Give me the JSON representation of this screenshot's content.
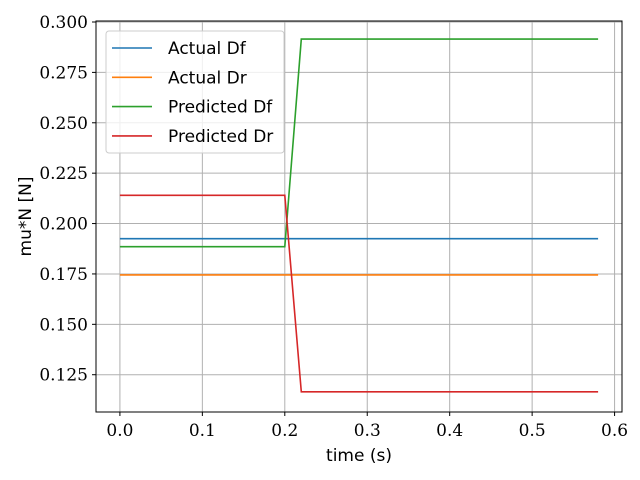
{
  "chart_data": {
    "type": "line",
    "xlabel": "time (s)",
    "ylabel": "mu*N [N]",
    "xlim": [
      -0.029,
      0.609
    ],
    "ylim": [
      0.1065,
      0.3005
    ],
    "xticks": [
      0.0,
      0.1,
      0.2,
      0.3,
      0.4,
      0.5,
      0.6
    ],
    "xtick_labels": [
      "0.0",
      "0.1",
      "0.2",
      "0.3",
      "0.4",
      "0.5",
      "0.6"
    ],
    "yticks": [
      0.125,
      0.15,
      0.175,
      0.2,
      0.225,
      0.25,
      0.275,
      0.3
    ],
    "ytick_labels": [
      "0.125",
      "0.150",
      "0.175",
      "0.200",
      "0.225",
      "0.250",
      "0.275",
      "0.300"
    ],
    "grid": true,
    "legend_position": "top-left",
    "series": [
      {
        "name": "Actual Df",
        "color": "#1f77b4",
        "x": [
          0.0,
          0.58
        ],
        "y": [
          0.1925,
          0.1925
        ]
      },
      {
        "name": "Actual Dr",
        "color": "#ff7f0e",
        "x": [
          0.0,
          0.58
        ],
        "y": [
          0.1745,
          0.1745
        ]
      },
      {
        "name": "Predicted Df",
        "color": "#2ca02c",
        "x": [
          0.0,
          0.2,
          0.22,
          0.58
        ],
        "y": [
          0.1885,
          0.1885,
          0.2915,
          0.2915
        ]
      },
      {
        "name": "Predicted Dr",
        "color": "#d62728",
        "x": [
          0.0,
          0.2,
          0.22,
          0.58
        ],
        "y": [
          0.214,
          0.214,
          0.1165,
          0.1165
        ]
      }
    ]
  }
}
